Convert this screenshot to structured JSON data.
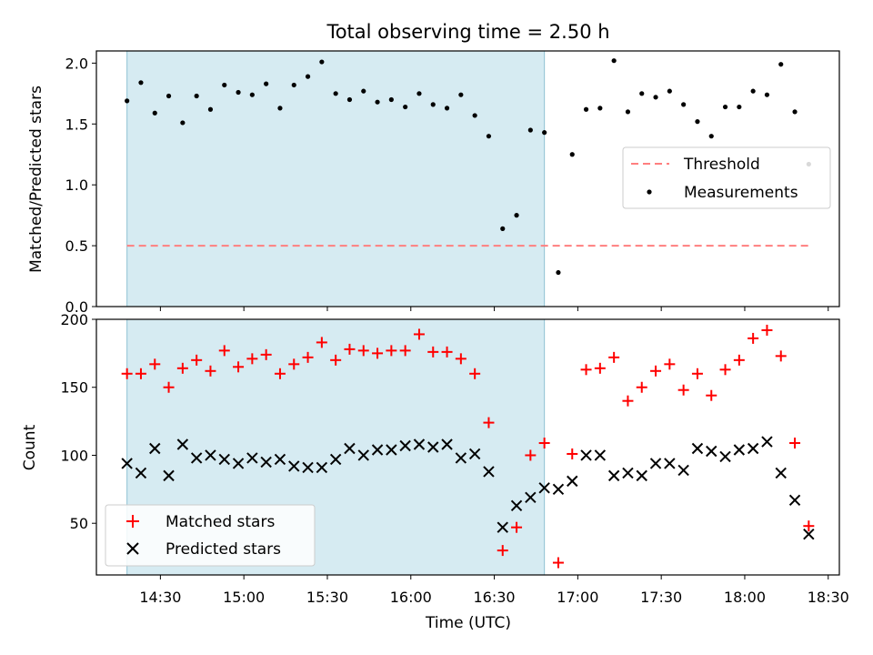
{
  "chart_data": [
    {
      "type": "scatter",
      "title": "Total observing time = 2.50 h",
      "xlabel": "",
      "ylabel": "Matched/Predicted stars",
      "ylim": [
        0,
        2.1
      ],
      "yticks": [
        "0.0",
        "0.5",
        "1.0",
        "1.5",
        "2.0"
      ],
      "shaded_range": [
        "14:18",
        "16:48"
      ],
      "legend_position": "right",
      "threshold": {
        "name": "Threshold",
        "value": 0.5,
        "x_range": [
          "14:18",
          "18:23"
        ],
        "color": "#ff7f7f"
      },
      "measurements": {
        "name": "Measurements",
        "color": "#000000",
        "x": [
          "14:18",
          "14:23",
          "14:28",
          "14:33",
          "14:38",
          "14:43",
          "14:48",
          "14:53",
          "14:58",
          "15:03",
          "15:08",
          "15:13",
          "15:18",
          "15:23",
          "15:28",
          "15:33",
          "15:38",
          "15:43",
          "15:48",
          "15:53",
          "15:58",
          "16:03",
          "16:08",
          "16:13",
          "16:18",
          "16:23",
          "16:28",
          "16:33",
          "16:38",
          "16:43",
          "16:48",
          "16:53",
          "16:58",
          "17:03",
          "17:08",
          "17:13",
          "17:18",
          "17:23",
          "17:28",
          "17:33",
          "17:38",
          "17:43",
          "17:48",
          "17:53",
          "17:58",
          "18:03",
          "18:08",
          "18:13",
          "18:18",
          "18:23"
        ],
        "y": [
          1.69,
          1.84,
          1.59,
          1.73,
          1.51,
          1.73,
          1.62,
          1.82,
          1.76,
          1.74,
          1.83,
          1.63,
          1.82,
          1.89,
          2.01,
          1.75,
          1.7,
          1.77,
          1.68,
          1.7,
          1.64,
          1.75,
          1.66,
          1.63,
          1.74,
          1.57,
          1.4,
          0.64,
          0.75,
          1.45,
          1.43,
          0.28,
          1.25,
          1.62,
          1.63,
          2.02,
          1.6,
          1.75,
          1.72,
          1.77,
          1.66,
          1.52,
          1.4,
          1.64,
          1.64,
          1.77,
          1.74,
          1.99,
          1.6,
          1.17
        ]
      }
    },
    {
      "type": "scatter",
      "title": "",
      "xlabel": "Time (UTC)",
      "ylabel": "Count",
      "ylim": [
        12,
        200
      ],
      "yticks": [
        "50",
        "100",
        "150",
        "200"
      ],
      "xticks": [
        "14:30",
        "15:00",
        "15:30",
        "16:00",
        "16:30",
        "17:00",
        "17:30",
        "18:00",
        "18:30"
      ],
      "shaded_range": [
        "14:18",
        "16:48"
      ],
      "legend_position": "lower left",
      "series": [
        {
          "name": "Matched stars",
          "marker": "+",
          "color": "#ff0000",
          "x": [
            "14:18",
            "14:23",
            "14:28",
            "14:33",
            "14:38",
            "14:43",
            "14:48",
            "14:53",
            "14:58",
            "15:03",
            "15:08",
            "15:13",
            "15:18",
            "15:23",
            "15:28",
            "15:33",
            "15:38",
            "15:43",
            "15:48",
            "15:53",
            "15:58",
            "16:03",
            "16:08",
            "16:13",
            "16:18",
            "16:23",
            "16:28",
            "16:33",
            "16:38",
            "16:43",
            "16:48",
            "16:53",
            "16:58",
            "17:03",
            "17:08",
            "17:13",
            "17:18",
            "17:23",
            "17:28",
            "17:33",
            "17:38",
            "17:43",
            "17:48",
            "17:53",
            "17:58",
            "18:03",
            "18:08",
            "18:13",
            "18:18",
            "18:23"
          ],
          "y": [
            160,
            160,
            167,
            150,
            164,
            170,
            162,
            177,
            165,
            171,
            174,
            160,
            167,
            172,
            183,
            170,
            178,
            177,
            175,
            177,
            177,
            189,
            176,
            176,
            171,
            160,
            124,
            30,
            47,
            100,
            109,
            21,
            101,
            163,
            164,
            172,
            140,
            150,
            162,
            167,
            148,
            160,
            144,
            163,
            170,
            186,
            192,
            173,
            109,
            48
          ]
        },
        {
          "name": "Predicted stars",
          "marker": "x",
          "color": "#000000",
          "x": [
            "14:18",
            "14:23",
            "14:28",
            "14:33",
            "14:38",
            "14:43",
            "14:48",
            "14:53",
            "14:58",
            "15:03",
            "15:08",
            "15:13",
            "15:18",
            "15:23",
            "15:28",
            "15:33",
            "15:38",
            "15:43",
            "15:48",
            "15:53",
            "15:58",
            "16:03",
            "16:08",
            "16:13",
            "16:18",
            "16:23",
            "16:28",
            "16:33",
            "16:38",
            "16:43",
            "16:48",
            "16:53",
            "16:58",
            "17:03",
            "17:08",
            "17:13",
            "17:18",
            "17:23",
            "17:28",
            "17:33",
            "17:38",
            "17:43",
            "17:48",
            "17:53",
            "17:58",
            "18:03",
            "18:08",
            "18:13",
            "18:18",
            "18:23"
          ],
          "y": [
            94,
            87,
            105,
            85,
            108,
            98,
            100,
            97,
            94,
            98,
            95,
            97,
            92,
            91,
            91,
            97,
            105,
            100,
            104,
            104,
            107,
            108,
            106,
            108,
            98,
            101,
            88,
            47,
            63,
            69,
            76,
            75,
            81,
            100,
            100,
            85,
            87,
            85,
            94,
            94,
            89,
            105,
            103,
            99,
            104,
            105,
            110,
            87,
            67,
            42
          ]
        }
      ]
    }
  ]
}
